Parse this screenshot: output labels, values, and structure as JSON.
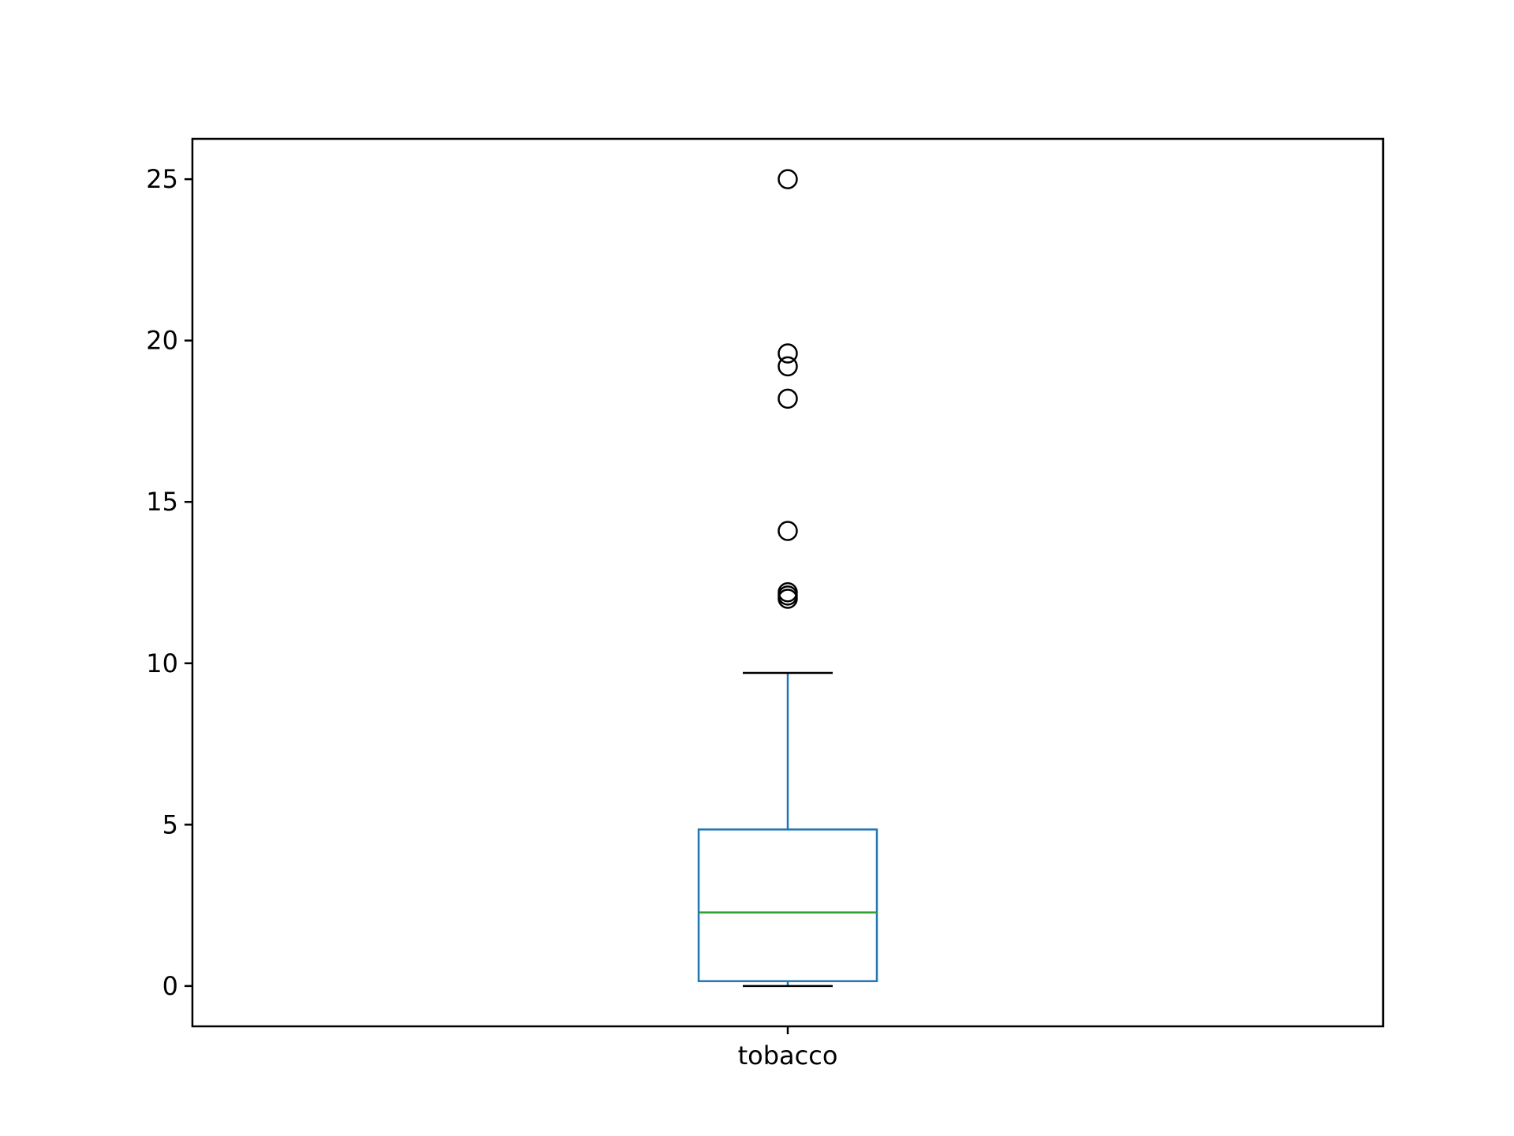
{
  "chart_data": {
    "type": "box",
    "title": "",
    "xlabel": "",
    "ylabel": "",
    "ylim": [
      -1.25,
      26.25
    ],
    "grid": false,
    "yticks": [
      {
        "value": 0,
        "label": "0"
      },
      {
        "value": 5,
        "label": "5"
      },
      {
        "value": 10,
        "label": "10"
      },
      {
        "value": 15,
        "label": "15"
      },
      {
        "value": 20,
        "label": "20"
      },
      {
        "value": 25,
        "label": "25"
      }
    ],
    "boxes": [
      {
        "label": "tobacco",
        "whisker_low": 0.0,
        "q1": 0.15,
        "median": 2.28,
        "q3": 4.85,
        "whisker_high": 9.7,
        "outliers": [
          12.0,
          12.1,
          12.2,
          14.1,
          18.2,
          19.2,
          19.6,
          25.0
        ]
      }
    ],
    "colors": {
      "box": "#1f77b4",
      "median": "#2ca02c",
      "whisker_caps": "#000000",
      "outliers": "#000000"
    }
  }
}
